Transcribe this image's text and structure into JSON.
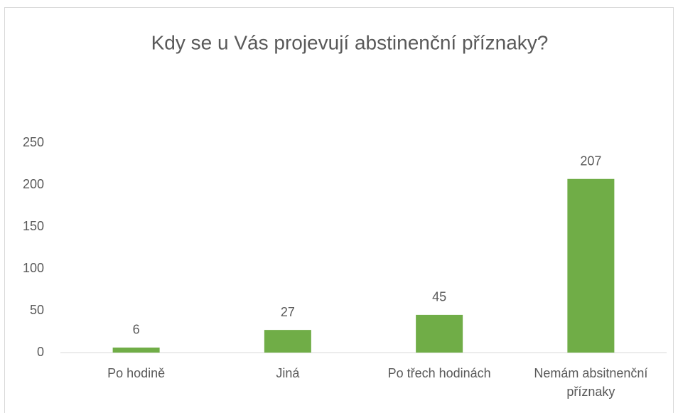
{
  "chart_data": {
    "type": "bar",
    "title": "Kdy se u Vás projevují abstinenční příznaky?",
    "categories": [
      "Po hodině",
      "Jiná",
      "Po třech hodinách",
      "Nemám absitnenční příznaky"
    ],
    "values": [
      6,
      27,
      45,
      207
    ],
    "color": "#70ad47",
    "ylim": [
      0,
      250
    ],
    "yticks": [
      0,
      50,
      100,
      150,
      200,
      250
    ],
    "grid": false
  }
}
